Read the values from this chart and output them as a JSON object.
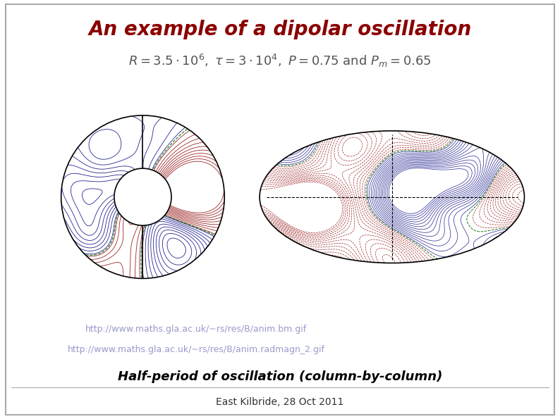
{
  "title": "An example of a dipolar oscillation",
  "title_color": "#8B0000",
  "title_fontsize": 20,
  "subtitle_fontsize": 13,
  "link1": "http://www.maths.gla.ac.uk/~rs/res/B/anim.bm.gif",
  "link2": "http://www.maths.gla.ac.uk/~rs/res/B/anim.radmagn_2.gif",
  "link_color": "#9999CC",
  "caption": "Half-period of oscillation (column-by-column)",
  "caption_fontsize": 13,
  "footer": "East Kilbride, 28 Oct 2011",
  "footer_fontsize": 10,
  "bg_color": "#FFFFFF",
  "border_color": "#AAAAAA",
  "contour_color_pos": "#8B0000",
  "contour_color_neg": "#000080",
  "contour_color_zero": "#006400"
}
